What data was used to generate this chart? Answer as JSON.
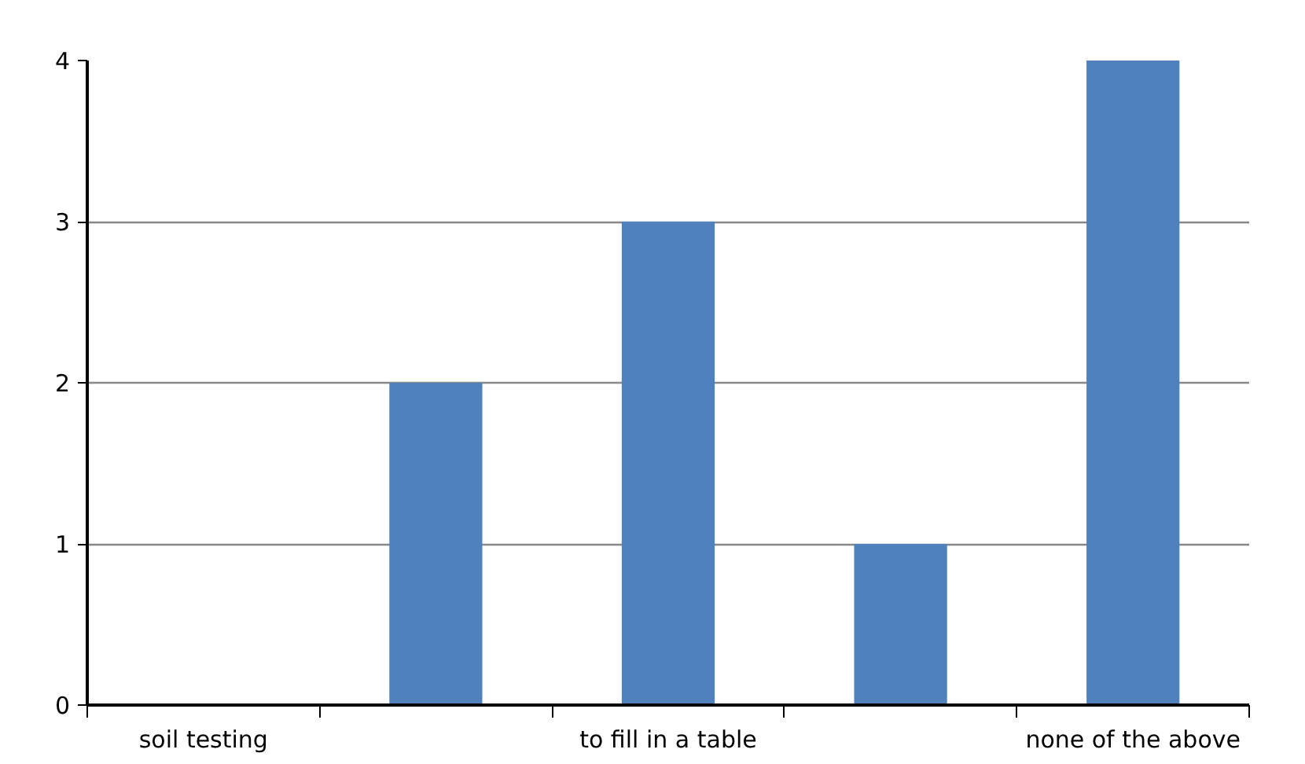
{
  "chart_data": {
    "type": "bar",
    "categories": [
      "soil testing",
      null,
      "to fill in a table",
      null,
      "none of the above"
    ],
    "values": [
      0,
      2,
      3,
      1,
      4
    ],
    "color": "#4f81bd",
    "ylim": [
      0,
      4
    ],
    "yticks": [
      0,
      1,
      2,
      3,
      4
    ],
    "grid": "y"
  }
}
